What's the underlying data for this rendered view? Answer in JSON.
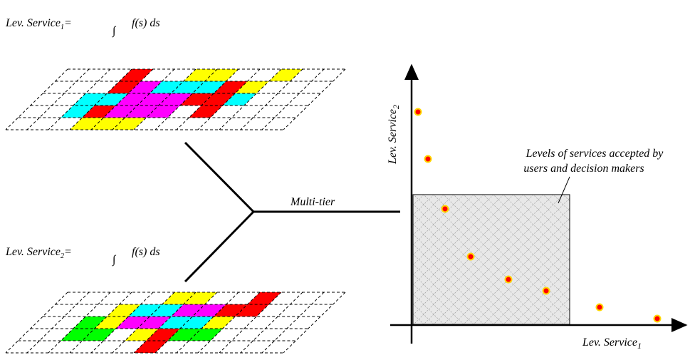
{
  "formulas": [
    {
      "label": "Lev. Service",
      "subscript": "1",
      "equals": "=",
      "integral": "∫",
      "integrand": "f(s) ds"
    },
    {
      "label": "Lev. Service",
      "subscript": "2",
      "equals": "=",
      "integral": "∫",
      "integrand": "f(s) ds"
    }
  ],
  "connector_label": "Multi-tier",
  "plot": {
    "y_axis": {
      "label": "Lev. Service",
      "subscript": "2"
    },
    "x_axis": {
      "label": "Lev. Service",
      "subscript": "1"
    },
    "annotation": [
      "Levels of services accepted by",
      "users and decision makers"
    ]
  }
}
